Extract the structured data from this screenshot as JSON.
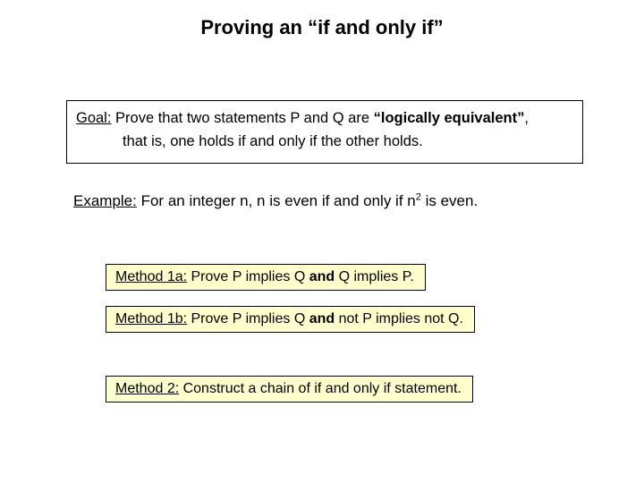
{
  "title": "Proving an “if and only if”",
  "goal": {
    "label": "Goal:",
    "line1_a": " Prove that two statements P and Q are ",
    "line1_b": "“logically equivalent”",
    "line1_c": ",",
    "line2": "that is, one holds if and only if the other holds."
  },
  "example": {
    "label": "Example:",
    "text_a": " For an integer n, n is even if and only if n",
    "sup": "2",
    "text_b": " is even."
  },
  "methods": {
    "m1a": {
      "label": "Method 1a:",
      "t1": " Prove P implies Q ",
      "bold": "and",
      "t2": " Q implies P."
    },
    "m1b": {
      "label": "Method 1b:",
      "t1": " Prove P implies Q ",
      "bold": "and",
      "t2": " not P implies not Q."
    },
    "m2": {
      "label": "Method 2:",
      "t1": " Construct a chain of if and only if statement."
    }
  },
  "colors": {
    "box_bg": "#ffffcc",
    "border": "#000000",
    "text": "#000000",
    "page_bg": "#ffffff"
  }
}
